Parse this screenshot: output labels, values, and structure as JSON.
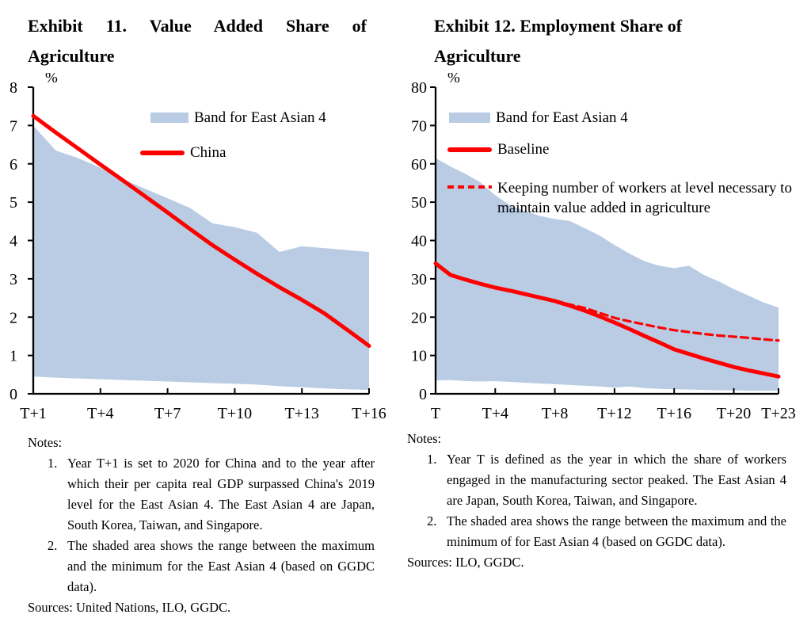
{
  "colors": {
    "band": "#b9cce4",
    "red": "#fe0000",
    "axis": "#000000"
  },
  "figures": [
    {
      "title_lines": [
        "Exhibit 11. Value Added Share of",
        "Agriculture"
      ],
      "legend": [
        {
          "swatch": "band",
          "label": "Band for East Asian 4"
        },
        {
          "swatch": "line-solid",
          "label": "China"
        }
      ],
      "notes": {
        "heading": "Notes:",
        "items": [
          {
            "num": "1.",
            "text": "Year T+1 is set to 2020 for China and to the year after which their per capita real GDP surpassed China's 2019 level for the East Asian 4. The East Asian 4 are Japan, South Korea, Taiwan, and Singapore."
          },
          {
            "num": "2.",
            "text": "The shaded area shows the range between the maximum and the minimum for the East Asian 4 (based on GGDC data)."
          }
        ],
        "sources": "Sources: United Nations, ILO, GGDC."
      }
    },
    {
      "title_lines": [
        "Exhibit 12. Employment Share of",
        "Agriculture"
      ],
      "legend": [
        {
          "swatch": "band",
          "label": "Band for East Asian 4"
        },
        {
          "swatch": "line-solid",
          "label": "Baseline"
        },
        {
          "swatch": "line-dashed",
          "label": "Keeping number of workers at level necessary to maintain value added in agriculture"
        }
      ],
      "notes": {
        "heading": "Notes:",
        "items": [
          {
            "num": "1.",
            "text": "Year T is defined as the year in which the share of workers engaged in the manufacturing sector peaked. The East Asian 4 are Japan, South Korea, Taiwan, and Singapore."
          },
          {
            "num": "2.",
            "text": "The shaded area shows the range between the maximum and the minimum of for East Asian 4 (based on GGDC data)."
          }
        ],
        "sources": "Sources: ILO, GGDC."
      }
    }
  ],
  "chart_data": [
    {
      "type": "area",
      "title": "Exhibit 11. Value Added Share of Agriculture",
      "unit_label": "%",
      "ylabel": "%",
      "ylim": [
        0,
        8
      ],
      "ytick_step": 1,
      "grid": false,
      "legend_position": "inside-top-right",
      "x": [
        "T+1",
        "T+2",
        "T+3",
        "T+4",
        "T+5",
        "T+6",
        "T+7",
        "T+8",
        "T+9",
        "T+10",
        "T+11",
        "T+12",
        "T+13",
        "T+14",
        "T+15",
        "T+16"
      ],
      "x_tick_labels": [
        "T+1",
        "T+4",
        "T+7",
        "T+10",
        "T+13",
        "T+16"
      ],
      "series": [
        {
          "id": "band",
          "name": "Band for East Asian 4",
          "type": "band",
          "color": "#b9cce4",
          "upper": [
            7.0,
            6.35,
            6.15,
            5.9,
            5.6,
            5.35,
            5.1,
            4.85,
            4.45,
            4.35,
            4.2,
            3.7,
            3.85,
            3.8,
            3.75,
            3.7
          ],
          "lower": [
            0.45,
            0.42,
            0.4,
            0.38,
            0.36,
            0.34,
            0.32,
            0.3,
            0.28,
            0.26,
            0.24,
            0.2,
            0.17,
            0.14,
            0.12,
            0.1
          ]
        },
        {
          "id": "china",
          "name": "China",
          "type": "line",
          "color": "#fe0000",
          "dash": false,
          "values": [
            7.25,
            6.82,
            6.4,
            5.98,
            5.57,
            5.15,
            4.73,
            4.3,
            3.88,
            3.5,
            3.13,
            2.78,
            2.45,
            2.1,
            1.68,
            1.25
          ]
        }
      ]
    },
    {
      "type": "area",
      "title": "Exhibit 12. Employment Share of Agriculture",
      "unit_label": "%",
      "ylabel": "%",
      "ylim": [
        0,
        80
      ],
      "ytick_step": 10,
      "grid": false,
      "legend_position": "inside-top-right",
      "x": [
        "T",
        "T+1",
        "T+2",
        "T+3",
        "T+4",
        "T+5",
        "T+6",
        "T+7",
        "T+8",
        "T+9",
        "T+10",
        "T+11",
        "T+12",
        "T+13",
        "T+14",
        "T+15",
        "T+16",
        "T+17",
        "T+18",
        "T+19",
        "T+20",
        "T+21",
        "T+22",
        "T+23"
      ],
      "x_tick_labels": [
        "T",
        "T+4",
        "T+8",
        "T+12",
        "T+16",
        "T+20",
        "T+23"
      ],
      "series": [
        {
          "id": "band",
          "name": "Band for East Asian 4",
          "type": "band",
          "color": "#b9cce4",
          "upper": [
            61.5,
            59.3,
            57.4,
            55.2,
            51.8,
            49.2,
            47.7,
            46.4,
            45.6,
            45.1,
            43.2,
            41.3,
            38.8,
            36.6,
            34.6,
            33.4,
            32.8,
            33.4,
            31.0,
            29.3,
            27.3,
            25.6,
            23.8,
            22.5
          ],
          "lower": [
            3.5,
            3.6,
            3.3,
            3.2,
            3.3,
            3.1,
            2.9,
            2.7,
            2.5,
            2.3,
            2.1,
            1.9,
            1.6,
            1.9,
            1.5,
            1.3,
            1.2,
            1.1,
            1.0,
            0.9,
            0.9,
            0.8,
            0.8,
            0.8
          ]
        },
        {
          "id": "baseline",
          "name": "Baseline",
          "type": "line",
          "color": "#fe0000",
          "dash": false,
          "values": [
            34,
            31,
            29.8,
            28.7,
            27.7,
            26.9,
            26,
            25.1,
            24.2,
            23,
            21.7,
            20.2,
            18.6,
            16.9,
            15.1,
            13.4,
            11.6,
            10.4,
            9.2,
            8.1,
            7,
            6.1,
            5.3,
            4.5
          ]
        },
        {
          "id": "keeping",
          "name": "Keeping number of workers at level necessary to maintain value added in agriculture",
          "type": "line",
          "color": "#fe0000",
          "dash": true,
          "values": [
            null,
            null,
            null,
            null,
            null,
            null,
            null,
            null,
            24.2,
            23.3,
            22.4,
            21.1,
            19.8,
            18.9,
            18.1,
            17.3,
            16.6,
            16.1,
            15.6,
            15.2,
            14.9,
            14.6,
            14.2,
            13.9
          ]
        }
      ]
    }
  ]
}
